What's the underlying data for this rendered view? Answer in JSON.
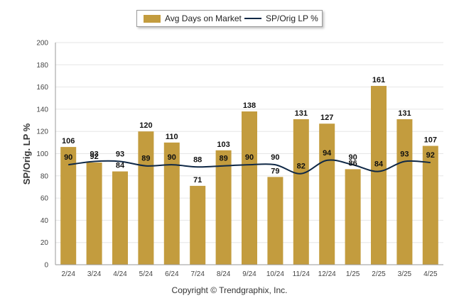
{
  "colors": {
    "bar": "#C39C3E",
    "line": "#0F2846",
    "grid": "#e6e6e6",
    "axis": "#333333"
  },
  "legend": {
    "bar_label": "Avg Days on Market",
    "line_label": "SP/Orig LP %"
  },
  "copyright": "Copyright © Trendgraphix, Inc.",
  "chart_data": {
    "type": "bar",
    "ylabel": "SP/Orig. LP %",
    "ylim": [
      0,
      200
    ],
    "yticks": [
      0,
      20,
      40,
      60,
      80,
      100,
      120,
      140,
      160,
      180,
      200
    ],
    "grid": true,
    "legend_position": "top",
    "categories": [
      "2/24",
      "3/24",
      "4/24",
      "5/24",
      "6/24",
      "7/24",
      "8/24",
      "9/24",
      "10/24",
      "11/24",
      "12/24",
      "1/25",
      "2/25",
      "3/25",
      "4/25"
    ],
    "series": [
      {
        "name": "Avg Days on Market",
        "type": "bar",
        "values": [
          106,
          92,
          84,
          120,
          110,
          71,
          103,
          138,
          79,
          131,
          127,
          86,
          161,
          131,
          107
        ]
      },
      {
        "name": "SP/Orig LP %",
        "type": "line",
        "values": [
          90,
          93,
          93,
          89,
          90,
          88,
          89,
          90,
          90,
          82,
          94,
          90,
          84,
          93,
          92
        ]
      }
    ]
  }
}
